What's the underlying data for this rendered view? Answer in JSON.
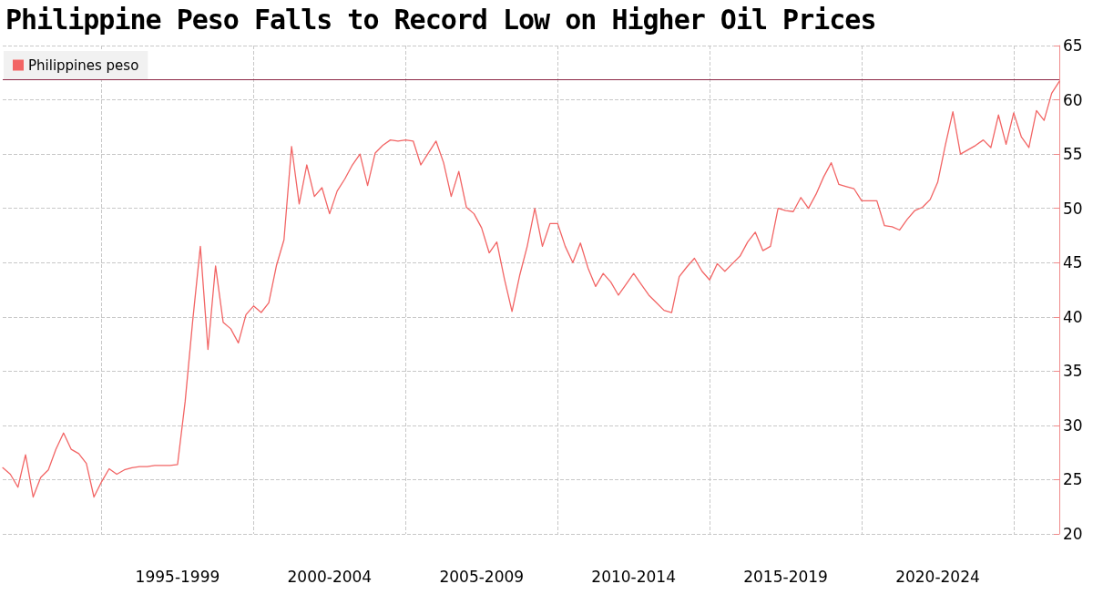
{
  "chart_data": {
    "type": "line",
    "title": "Philippine Peso Falls to Record Low on Higher Oil Prices",
    "categories": [
      null,
      null,
      null,
      null,
      null,
      null,
      null,
      null,
      null,
      null,
      null,
      null,
      null,
      null,
      null,
      null,
      null,
      null,
      null,
      null,
      null,
      null,
      null,
      "1995-1999",
      null,
      null,
      null,
      null,
      null,
      null,
      null,
      null,
      null,
      null,
      null,
      null,
      null,
      null,
      null,
      null,
      null,
      null,
      null,
      "2000-2004",
      null,
      null,
      null,
      null,
      null,
      null,
      null,
      null,
      null,
      null,
      null,
      null,
      null,
      null,
      null,
      null,
      null,
      null,
      null,
      "2005-2009",
      null,
      null,
      null,
      null,
      null,
      null,
      null,
      null,
      null,
      null,
      null,
      null,
      null,
      null,
      null,
      null,
      null,
      null,
      null,
      "2010-2014",
      null,
      null,
      null,
      null,
      null,
      null,
      null,
      null,
      null,
      null,
      null,
      null,
      null,
      null,
      null,
      null,
      null,
      null,
      null,
      "2015-2019",
      null,
      null,
      null,
      null,
      null,
      null,
      null,
      null,
      null,
      null,
      null,
      null,
      null,
      null,
      null,
      null,
      null,
      null,
      null,
      "2020-2024",
      null,
      null,
      null,
      null,
      null,
      null,
      null,
      null,
      null,
      null,
      null,
      null,
      null,
      null,
      null,
      null
    ],
    "series": [
      {
        "name": "Philippines peso",
        "color": "#f26565",
        "values": [
          26.1,
          25.5,
          24.3,
          27.3,
          23.4,
          25.2,
          25.9,
          27.8,
          29.3,
          27.8,
          27.4,
          26.5,
          23.4,
          24.8,
          26.0,
          25.5,
          25.9,
          26.1,
          26.2,
          26.2,
          26.3,
          26.3,
          26.3,
          26.4,
          32.2,
          39.7,
          46.5,
          37.0,
          44.7,
          39.5,
          38.9,
          37.6,
          40.2,
          41.0,
          40.4,
          41.3,
          44.7,
          47.1,
          55.7,
          50.4,
          54.0,
          51.1,
          51.9,
          49.5,
          51.6,
          52.7,
          54.0,
          55.0,
          52.1,
          55.1,
          55.8,
          56.3,
          56.2,
          56.3,
          56.2,
          54.0,
          55.1,
          56.2,
          54.2,
          51.1,
          53.4,
          50.1,
          49.5,
          48.2,
          45.9,
          46.9,
          43.5,
          40.5,
          43.8,
          46.5,
          50.0,
          46.5,
          48.6,
          48.6,
          46.5,
          45.0,
          46.8,
          44.5,
          42.8,
          44.0,
          43.2,
          42.0,
          43.0,
          44.0,
          43.0,
          42.0,
          41.3,
          40.6,
          40.4,
          43.7,
          44.6,
          45.4,
          44.2,
          43.4,
          44.9,
          44.2,
          44.9,
          45.6,
          46.9,
          47.8,
          46.1,
          46.5,
          50.0,
          49.8,
          49.7,
          51.0,
          50.0,
          51.3,
          52.9,
          54.2,
          52.2,
          52.0,
          51.8,
          50.7,
          50.7,
          50.7,
          48.4,
          48.3,
          48.0,
          49.0,
          49.8,
          50.1,
          50.8,
          52.4,
          55.8,
          58.9,
          55.0,
          55.4,
          55.8,
          56.3,
          55.6,
          58.6,
          55.9,
          58.8,
          56.6,
          55.6,
          59.0,
          58.1,
          60.6,
          61.7
        ]
      }
    ],
    "ylim": [
      20,
      65
    ],
    "yticks": [
      20,
      25,
      30,
      35,
      40,
      45,
      50,
      55,
      60,
      65
    ],
    "ref_lines": [
      {
        "axis": "y",
        "value": 61.9,
        "color": "#8c2846"
      }
    ],
    "grid": true,
    "legend": "top left"
  }
}
